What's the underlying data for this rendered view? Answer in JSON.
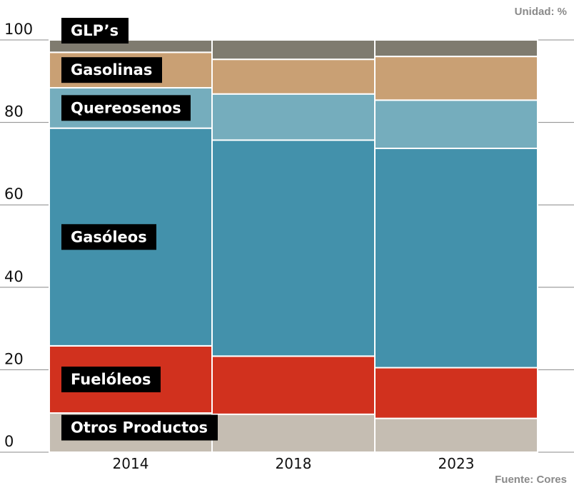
{
  "unit_note": "Unidad: %",
  "source_note": "Fuente: Cores",
  "colors": {
    "otros": "#c5bdb2",
    "fueloleos": "#d1311e",
    "gasoleos": "#4391ab",
    "querosenos": "#75adbd",
    "gasolinas": "#c9a074",
    "glp": "#7f7b6f",
    "label_bg": "#000000",
    "grid": "#888888"
  },
  "chart_data": {
    "type": "bar",
    "stacked": true,
    "categories": [
      "2014",
      "2018",
      "2023"
    ],
    "series": [
      {
        "key": "otros",
        "name": "Otros Productos",
        "values": [
          9.5,
          9.2,
          8.2
        ]
      },
      {
        "key": "fueloleos",
        "name": "Fuelóleos",
        "values": [
          16.3,
          14.1,
          12.3
        ]
      },
      {
        "key": "gasoleos",
        "name": "Gasóleos",
        "values": [
          52.8,
          52.4,
          53.2
        ]
      },
      {
        "key": "querosenos",
        "name": "Quereosenos",
        "values": [
          9.8,
          11.2,
          11.7
        ]
      },
      {
        "key": "gasolinas",
        "name": "Gasolinas",
        "values": [
          8.6,
          8.4,
          10.6
        ]
      },
      {
        "key": "glp",
        "name": "GLP’s",
        "values": [
          3.0,
          4.7,
          4.0
        ]
      }
    ],
    "ylim": [
      0,
      100
    ],
    "yticks": [
      "0",
      "20",
      "40",
      "60",
      "80",
      "100"
    ],
    "grid": true
  }
}
